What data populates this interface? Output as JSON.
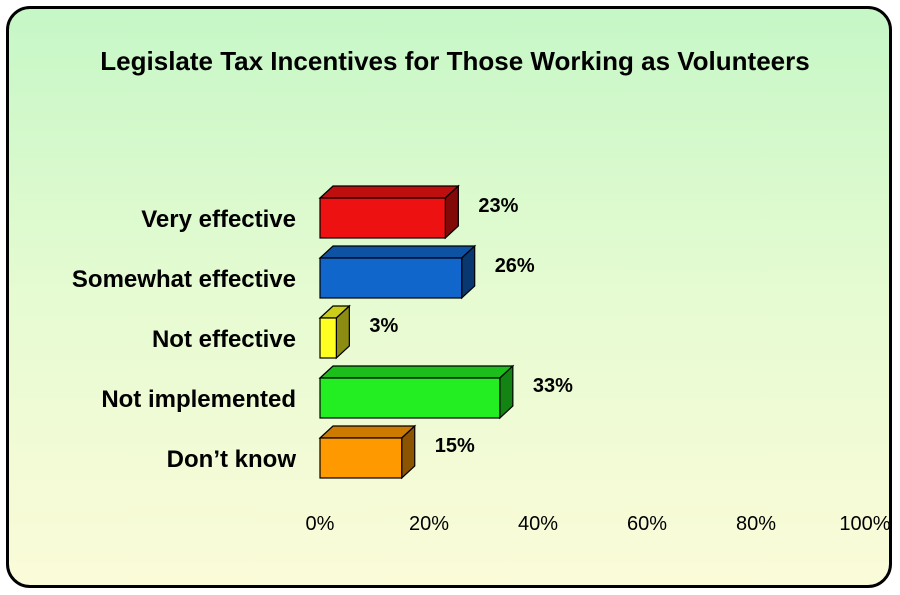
{
  "chart_data": {
    "type": "bar",
    "orientation": "horizontal",
    "title": "Legislate Tax Incentives for Those Working as Volunteers",
    "categories": [
      "Very effective",
      "Somewhat effective",
      "Not effective",
      "Not implemented",
      "Don’t know"
    ],
    "values": [
      23,
      26,
      3,
      33,
      15
    ],
    "value_labels": [
      "23%",
      "26%",
      "3%",
      "33%",
      "15%"
    ],
    "colors": [
      "#ee1111",
      "#1166cc",
      "#ffff22",
      "#22ee22",
      "#ff9900"
    ],
    "xlim": [
      0,
      100
    ],
    "x_ticks": [
      "0%",
      "20%",
      "40%",
      "60%",
      "80%",
      "100%"
    ],
    "grid": false,
    "legend": "none"
  }
}
